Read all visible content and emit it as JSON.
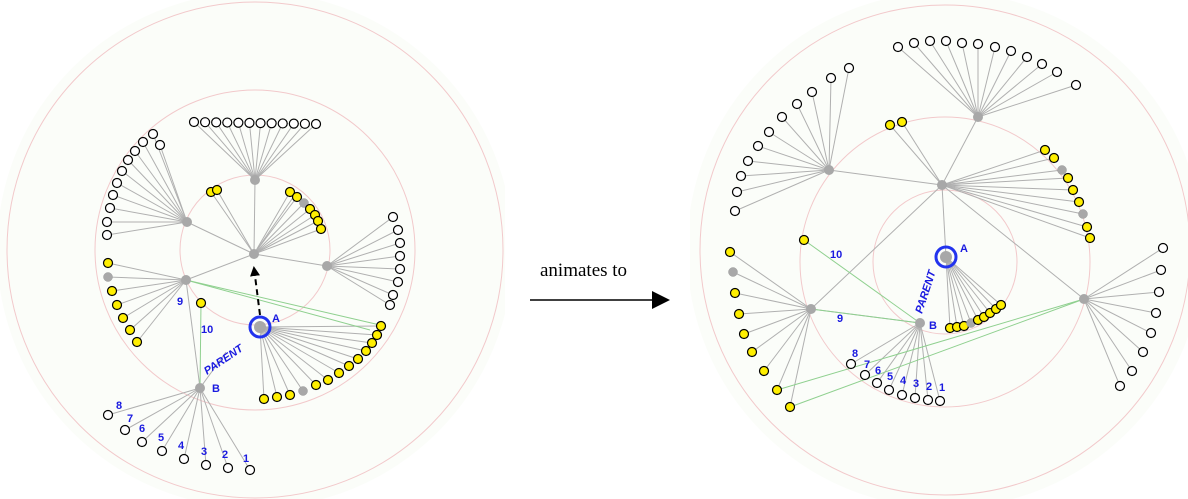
{
  "caption": "animates to",
  "labels": {
    "node_a": "A",
    "node_b": "B",
    "parent": "PARENT",
    "numbers": [
      "1",
      "2",
      "3",
      "4",
      "5",
      "6",
      "7",
      "8",
      "9",
      "10"
    ]
  },
  "colors": {
    "background": "#fbfdf9",
    "ring": "#f2c9cb",
    "edge": "#b0b0b0",
    "link": "#8fd08f",
    "focus": "#2233ee",
    "label": "#1a1ae0",
    "node_gray": "#a8a8a8",
    "node_yellow": "#ffef00",
    "node_white": "#ffffff",
    "arrow": "#000000"
  }
}
